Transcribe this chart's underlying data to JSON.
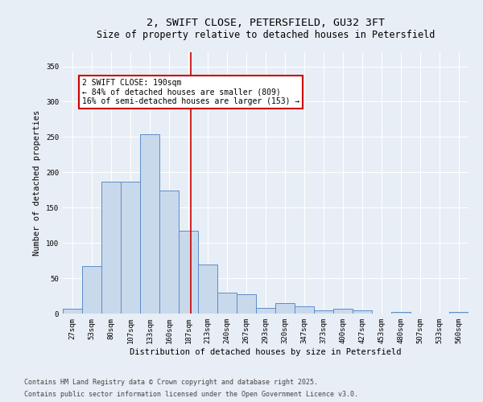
{
  "title_line1": "2, SWIFT CLOSE, PETERSFIELD, GU32 3FT",
  "title_line2": "Size of property relative to detached houses in Petersfield",
  "xlabel": "Distribution of detached houses by size in Petersfield",
  "ylabel": "Number of detached properties",
  "bar_labels": [
    "27sqm",
    "53sqm",
    "80sqm",
    "107sqm",
    "133sqm",
    "160sqm",
    "187sqm",
    "213sqm",
    "240sqm",
    "267sqm",
    "293sqm",
    "320sqm",
    "347sqm",
    "373sqm",
    "400sqm",
    "427sqm",
    "453sqm",
    "480sqm",
    "507sqm",
    "533sqm",
    "560sqm"
  ],
  "bar_values": [
    7,
    67,
    187,
    187,
    254,
    174,
    117,
    70,
    30,
    27,
    8,
    15,
    10,
    5,
    7,
    5,
    0,
    2,
    0,
    0,
    2
  ],
  "bar_color": "#c9d9ec",
  "bar_edge_color": "#5b8dc8",
  "vline_x_index": 6.12,
  "vline_color": "#cc0000",
  "annotation_text": "2 SWIFT CLOSE: 190sqm\n← 84% of detached houses are smaller (809)\n16% of semi-detached houses are larger (153) →",
  "annotation_box_color": "#ffffff",
  "annotation_box_edge": "#cc0000",
  "ylim": [
    0,
    370
  ],
  "yticks": [
    0,
    50,
    100,
    150,
    200,
    250,
    300,
    350
  ],
  "background_color": "#e8eef5",
  "footer_line1": "Contains HM Land Registry data © Crown copyright and database right 2025.",
  "footer_line2": "Contains public sector information licensed under the Open Government Licence v3.0.",
  "title_fontsize": 9.5,
  "subtitle_fontsize": 8.5,
  "axis_label_fontsize": 7.5,
  "tick_fontsize": 6.5,
  "annotation_fontsize": 7,
  "footer_fontsize": 6
}
